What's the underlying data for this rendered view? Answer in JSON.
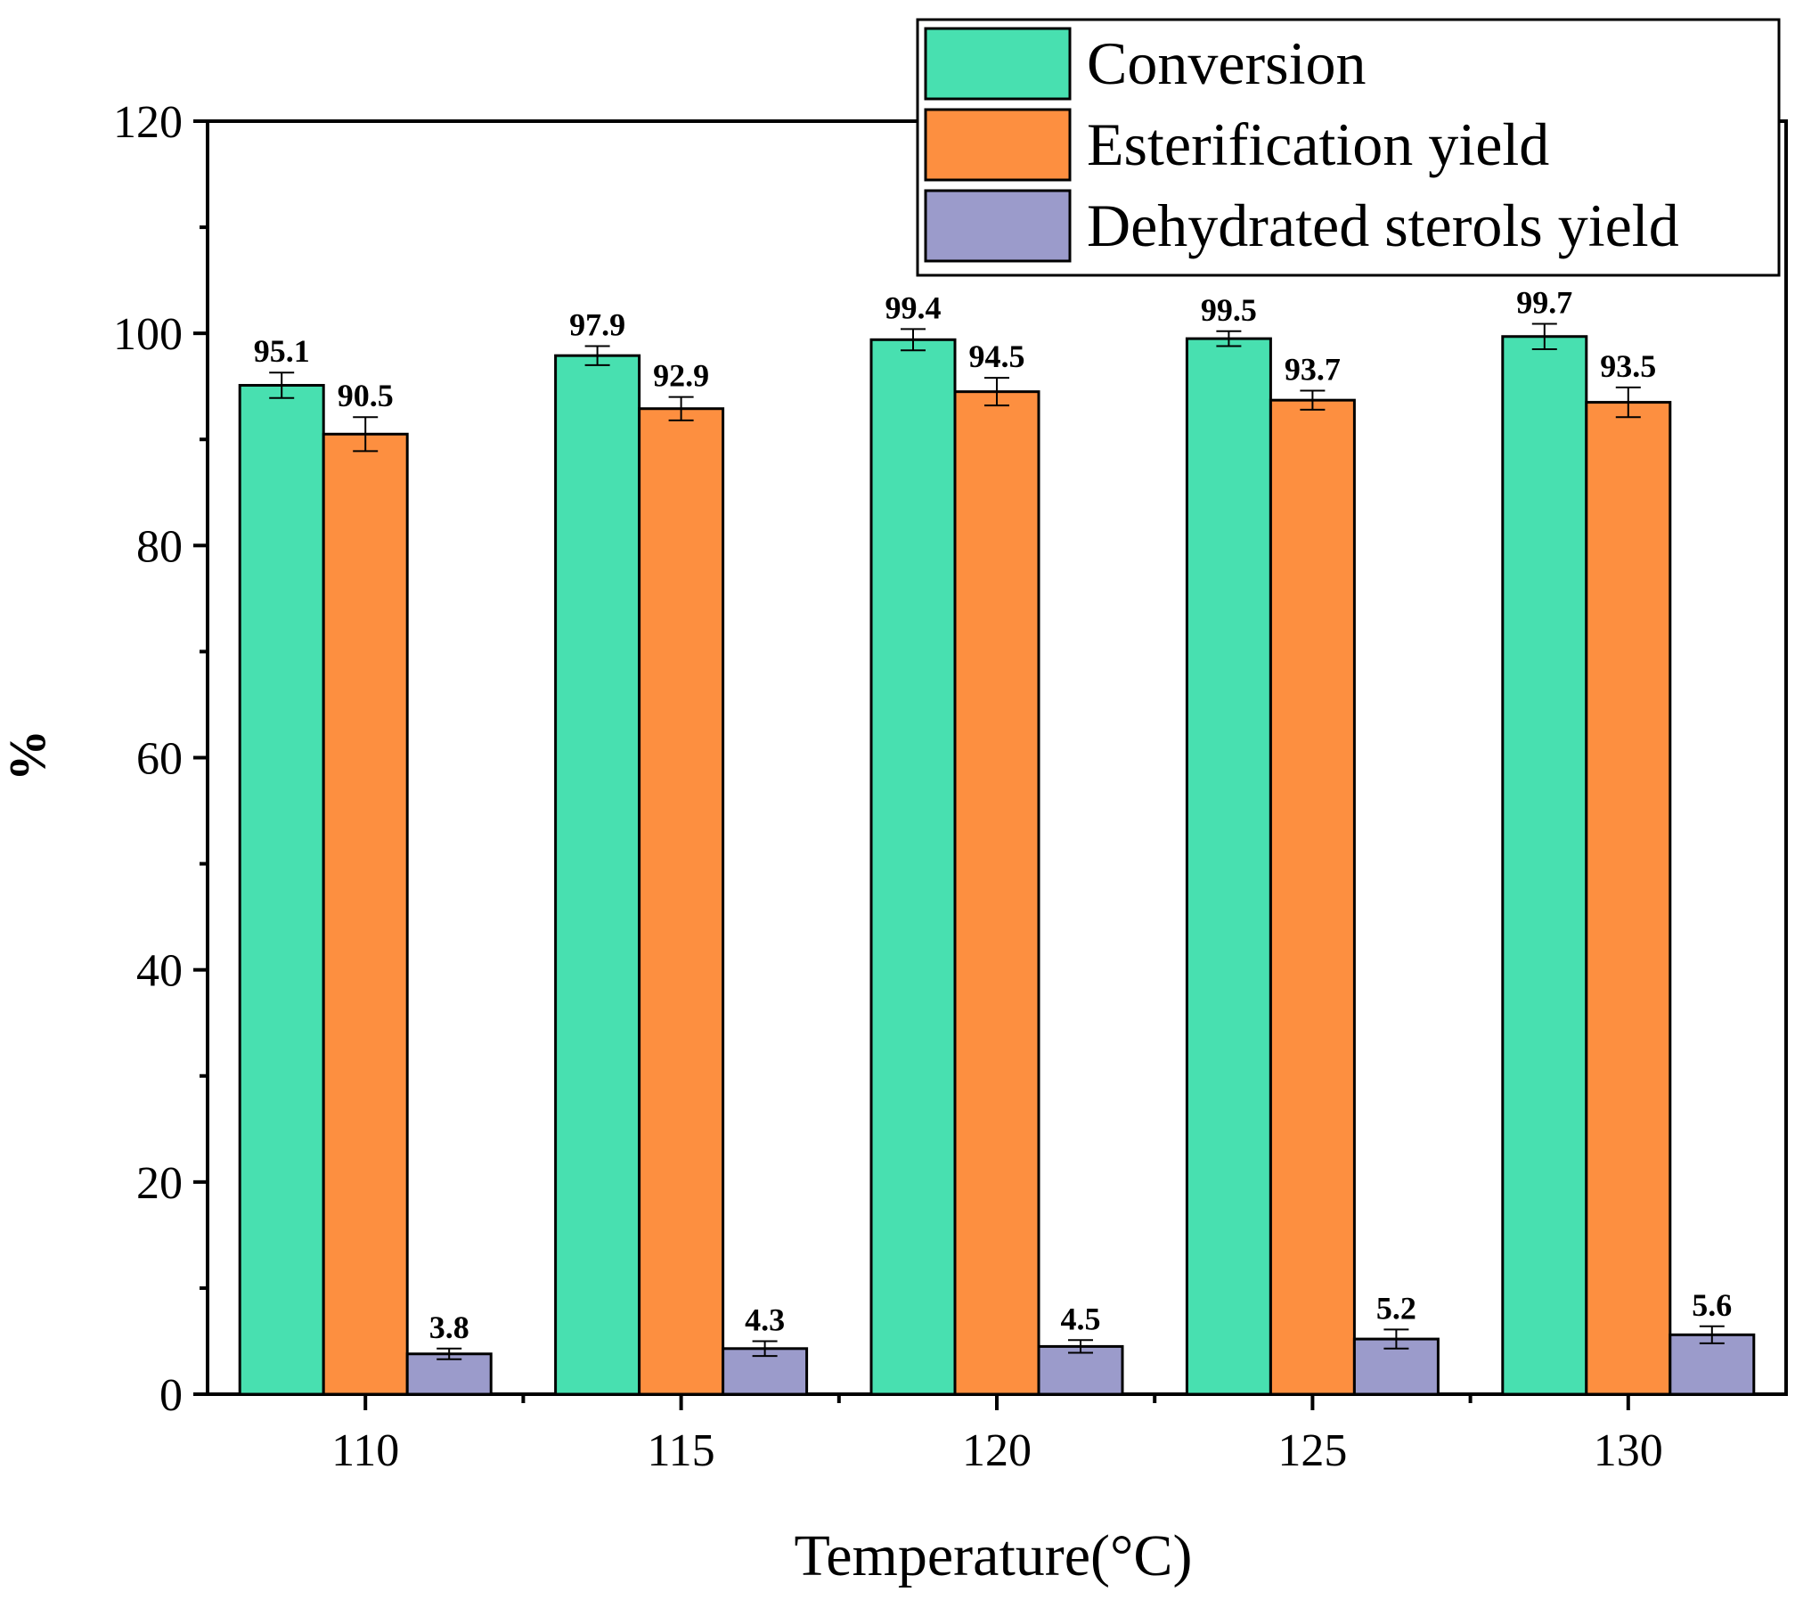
{
  "chart_data": {
    "type": "bar",
    "title": "",
    "xlabel": "Temperature(°C)",
    "ylabel": "%",
    "ylim": [
      0,
      120
    ],
    "yticks": [
      0,
      20,
      40,
      60,
      80,
      100,
      120
    ],
    "categories": [
      "110",
      "115",
      "120",
      "125",
      "130"
    ],
    "legend_position": "top-right",
    "series": [
      {
        "name": "Conversion",
        "color": "#48e0b0",
        "values": [
          95.1,
          97.9,
          99.4,
          99.5,
          99.7
        ],
        "errors": [
          1.2,
          0.9,
          1.0,
          0.7,
          1.2
        ],
        "labels": [
          "95.1",
          "97.9",
          "99.4",
          "99.5",
          "99.7"
        ]
      },
      {
        "name": "Esterification yield",
        "color": "#fd8f40",
        "values": [
          90.5,
          92.9,
          94.5,
          93.7,
          93.5
        ],
        "errors": [
          1.6,
          1.1,
          1.3,
          0.9,
          1.4
        ],
        "labels": [
          "90.5",
          "92.9",
          "94.5",
          "93.7",
          "93.5"
        ]
      },
      {
        "name": "Dehydrated sterols yield",
        "color": "#9b9bcb",
        "values": [
          3.8,
          4.3,
          4.5,
          5.2,
          5.6
        ],
        "errors": [
          0.5,
          0.7,
          0.6,
          0.9,
          0.8
        ],
        "labels": [
          "3.8",
          "4.3",
          "4.5",
          "5.2",
          "5.6"
        ]
      }
    ]
  }
}
